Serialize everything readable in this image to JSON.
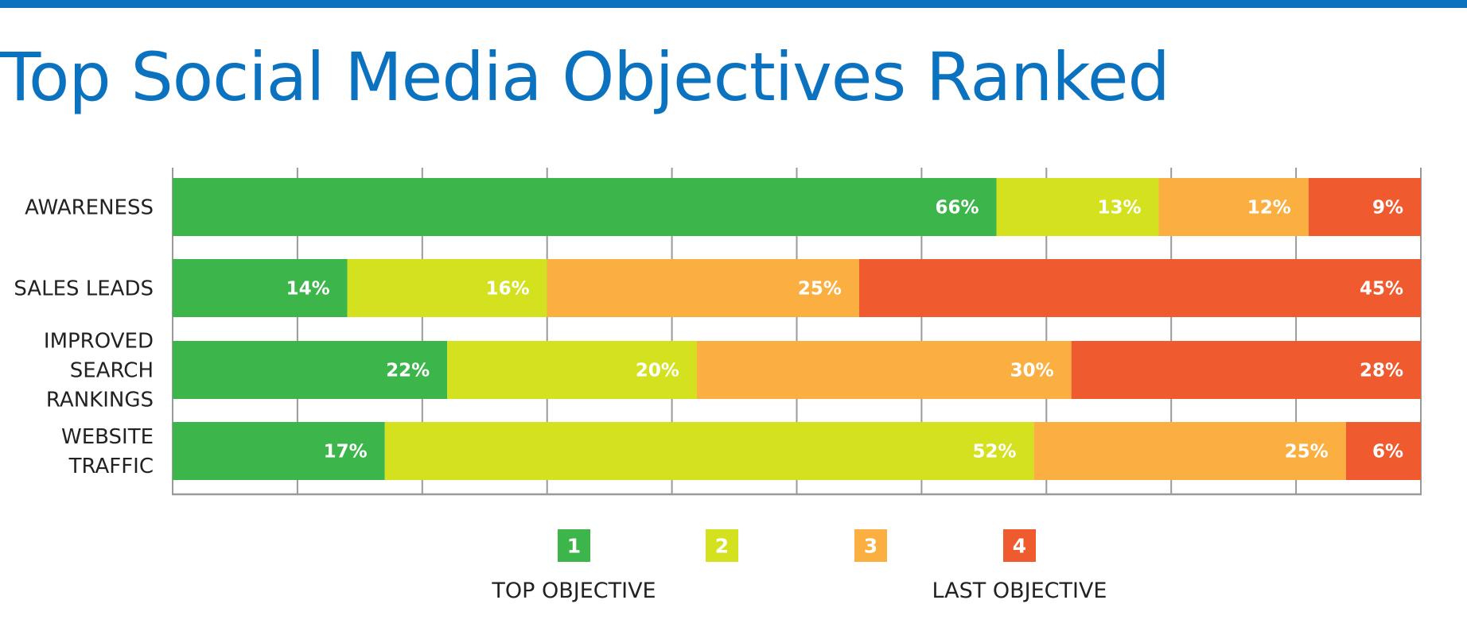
{
  "title": "Top Social Media Objectives Ranked",
  "colors": {
    "accent": "#0B72C0",
    "rank_1": "#3CB54A",
    "rank_2": "#D4E11F",
    "rank_3": "#FBAF41",
    "rank_4": "#F05A2F",
    "grid": "#9A9A9A"
  },
  "chart_data": {
    "type": "bar",
    "orientation": "horizontal",
    "stacked": true,
    "categories": [
      [
        "AWARENESS"
      ],
      [
        "SALES LEADS"
      ],
      [
        "IMPROVED",
        "SEARCH",
        "RANKINGS"
      ],
      [
        "WEBSITE",
        "TRAFFIC"
      ]
    ],
    "series": [
      {
        "name": "1",
        "color": "#3CB54A",
        "values": [
          66,
          14,
          22,
          17
        ]
      },
      {
        "name": "2",
        "color": "#D4E11F",
        "values": [
          13,
          16,
          20,
          52
        ]
      },
      {
        "name": "3",
        "color": "#FBAF41",
        "values": [
          12,
          25,
          30,
          25
        ]
      },
      {
        "name": "4",
        "color": "#F05A2F",
        "values": [
          9,
          45,
          28,
          6
        ]
      }
    ],
    "value_labels": [
      [
        "66%",
        "13%",
        "12%",
        "9%"
      ],
      [
        "14%",
        "16%",
        "25%",
        "45%"
      ],
      [
        "22%",
        "20%",
        "30%",
        "28%"
      ],
      [
        "17%",
        "52%",
        "25%",
        "6%"
      ]
    ],
    "xlim": [
      0,
      100
    ],
    "grid_divisions": 10,
    "grid": true,
    "legend": {
      "position": "bottom",
      "items": [
        "1",
        "2",
        "3",
        "4"
      ],
      "captions": {
        "first": "TOP OBJECTIVE",
        "last": "LAST OBJECTIVE"
      }
    }
  }
}
